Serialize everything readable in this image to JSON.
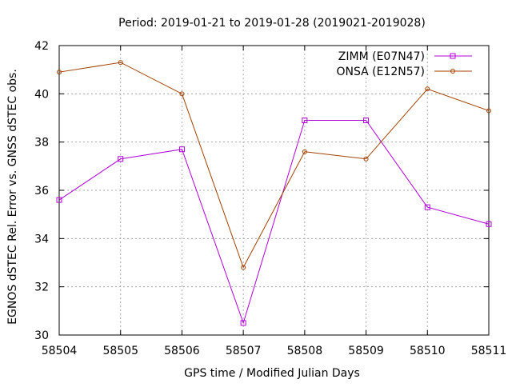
{
  "chart_data": {
    "type": "line",
    "title": "Period: 2019-01-21 to 2019-01-28 (2019021-2019028)",
    "xlabel": "GPS time / Modified Julian Days",
    "ylabel": "EGNOS dSTEC Rel. Error vs. GNSS dSTEC obs.",
    "xlim": [
      58504,
      58511
    ],
    "ylim": [
      30,
      42
    ],
    "x_ticks": [
      "58504",
      "58505",
      "58506",
      "58507",
      "58508",
      "58509",
      "58510",
      "58511"
    ],
    "y_ticks": [
      "30",
      "32",
      "34",
      "36",
      "38",
      "40",
      "42"
    ],
    "grid": true,
    "legend_position": "top-right",
    "x": [
      58504,
      58505,
      58506,
      58507,
      58508,
      58509,
      58510,
      58511
    ],
    "series": [
      {
        "name": "ZIMM (E07N47)",
        "color": "#b000d8",
        "marker": "square",
        "values": [
          35.6,
          37.3,
          37.7,
          30.5,
          38.9,
          38.9,
          35.3,
          34.6
        ]
      },
      {
        "name": "ONSA (E12N57)",
        "color": "#a04000",
        "marker": "circle",
        "values": [
          40.9,
          41.3,
          40.0,
          32.8,
          37.6,
          37.3,
          40.2,
          39.3
        ]
      }
    ]
  }
}
